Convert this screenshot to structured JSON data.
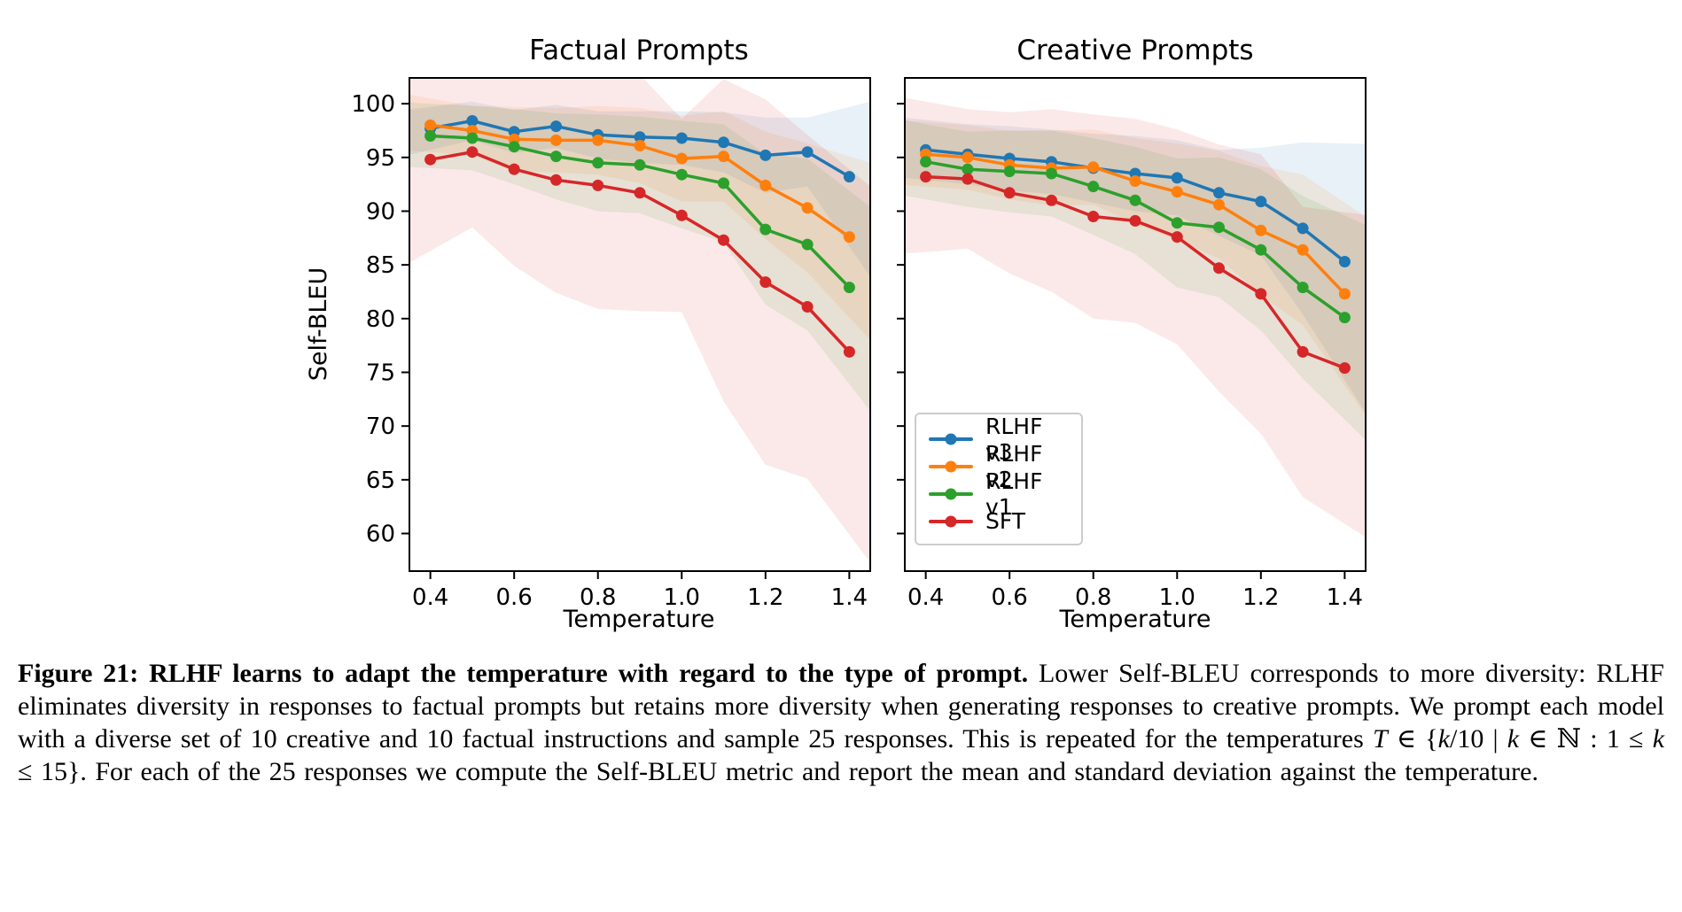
{
  "figure_label": "Figure 21",
  "legend": {
    "position": "lower-left-of-right-plot",
    "items": [
      {
        "label": "RLHF v3",
        "color": "#1f77b4"
      },
      {
        "label": "RLHF v2",
        "color": "#ff7f0e"
      },
      {
        "label": "RLHF v1",
        "color": "#2ca02c"
      },
      {
        "label": "SFT",
        "color": "#d62728"
      }
    ]
  },
  "caption": {
    "segments": [
      {
        "text": "Figure 21: RLHF learns to adapt the temperature with regard to the type of prompt.",
        "bold": true
      },
      {
        "text": " Lower Self-BLEU corresponds to more diversity: RLHF eliminates diversity in responses to factual prompts but retains more diversity when generating responses to creative prompts. We prompt each model with a diverse set of 10 creative and 10 factual instructions and sample 25 responses. This is repeated for the temperatures "
      },
      {
        "text": "T",
        "italic": true
      },
      {
        "text": " ∈ {"
      },
      {
        "text": "k",
        "italic": true
      },
      {
        "text": "/10 | "
      },
      {
        "text": "k",
        "italic": true
      },
      {
        "text": " ∈ ℕ : 1 ≤ "
      },
      {
        "text": "k",
        "italic": true
      },
      {
        "text": " ≤ 15}. For each of the 25 responses we compute the Self-BLEU metric and report the mean and standard deviation against the temperature."
      }
    ]
  },
  "chart_data": [
    {
      "type": "line",
      "title": "Factual Prompts",
      "xlabel": "Temperature",
      "ylabel": "Self-BLEU",
      "grid": false,
      "band": "mean ± standard deviation, translucent",
      "xlim": [
        0.35,
        1.45
      ],
      "ylim": [
        56.5,
        102.4
      ],
      "xticks": [
        "0.4",
        "0.6",
        "0.8",
        "1.0",
        "1.2",
        "1.4"
      ],
      "xtick_values": [
        0.4,
        0.6,
        0.8,
        1.0,
        1.2,
        1.4
      ],
      "yticks": [
        "100",
        "95",
        "90",
        "85",
        "80",
        "75",
        "70",
        "65",
        "60"
      ],
      "ytick_values": [
        100,
        95,
        90,
        85,
        80,
        75,
        70,
        65,
        60
      ],
      "show_y_tick_labels": true,
      "x": [
        0.4,
        0.5,
        0.6,
        0.7,
        0.8,
        0.9,
        1.0,
        1.1,
        1.2,
        1.3,
        1.4
      ],
      "series": [
        {
          "name": "RLHF v3",
          "color": "#1f77b4",
          "values": [
            97.7,
            98.4,
            97.4,
            97.9,
            97.1,
            96.9,
            96.8,
            96.4,
            95.2,
            95.5,
            93.2
          ],
          "std": [
            2.0,
            1.8,
            2.0,
            2.0,
            2.2,
            2.4,
            2.5,
            2.8,
            3.5,
            3.2,
            6.5
          ]
        },
        {
          "name": "RLHF v2",
          "color": "#ff7f0e",
          "values": [
            98.0,
            97.5,
            96.7,
            96.6,
            96.6,
            96.1,
            94.9,
            95.1,
            92.4,
            90.3,
            87.6
          ],
          "std": [
            2.5,
            2.3,
            3.0,
            3.0,
            3.2,
            3.5,
            4.0,
            4.2,
            5.0,
            6.0,
            7.5
          ]
        },
        {
          "name": "RLHF v1",
          "color": "#2ca02c",
          "values": [
            97.0,
            96.8,
            96.0,
            95.1,
            94.5,
            94.3,
            93.4,
            92.6,
            88.3,
            86.9,
            82.9
          ],
          "std": [
            3.0,
            3.0,
            3.5,
            4.0,
            4.5,
            4.5,
            5.0,
            5.5,
            7.0,
            8.0,
            9.0
          ]
        },
        {
          "name": "SFT",
          "color": "#d62728",
          "values": [
            94.8,
            95.5,
            93.9,
            92.9,
            92.4,
            91.7,
            89.6,
            87.3,
            83.4,
            81.1,
            76.9
          ],
          "std": [
            8.5,
            7.0,
            9.0,
            10.5,
            11.5,
            11.0,
            9.0,
            15.0,
            17.0,
            16.0,
            17.0
          ]
        }
      ]
    },
    {
      "type": "line",
      "title": "Creative Prompts",
      "xlabel": "Temperature",
      "ylabel": null,
      "grid": false,
      "band": "mean ± standard deviation, translucent",
      "xlim": [
        0.35,
        1.45
      ],
      "ylim": [
        56.5,
        102.4
      ],
      "xticks": [
        "0.4",
        "0.6",
        "0.8",
        "1.0",
        "1.2",
        "1.4"
      ],
      "xtick_values": [
        0.4,
        0.6,
        0.8,
        1.0,
        1.2,
        1.4
      ],
      "yticks": [
        "100",
        "95",
        "90",
        "85",
        "80",
        "75",
        "70",
        "65",
        "60"
      ],
      "ytick_values": [
        100,
        95,
        90,
        85,
        80,
        75,
        70,
        65,
        60
      ],
      "show_y_tick_labels": false,
      "x": [
        0.4,
        0.5,
        0.6,
        0.7,
        0.8,
        0.9,
        1.0,
        1.1,
        1.2,
        1.3,
        1.4
      ],
      "series": [
        {
          "name": "RLHF v3",
          "color": "#1f77b4",
          "values": [
            95.7,
            95.3,
            94.9,
            94.6,
            94.0,
            93.5,
            93.1,
            91.7,
            90.9,
            88.4,
            85.3
          ],
          "std": [
            2.8,
            2.8,
            3.0,
            3.0,
            3.2,
            3.5,
            3.5,
            4.0,
            5.0,
            8.0,
            11.0
          ]
        },
        {
          "name": "RLHF v2",
          "color": "#ff7f0e",
          "values": [
            95.3,
            95.0,
            94.3,
            94.0,
            94.1,
            92.8,
            91.8,
            90.6,
            88.2,
            86.4,
            82.3
          ],
          "std": [
            3.0,
            3.0,
            3.2,
            3.5,
            3.5,
            4.0,
            4.5,
            5.0,
            6.0,
            7.0,
            8.5
          ]
        },
        {
          "name": "RLHF v1",
          "color": "#2ca02c",
          "values": [
            94.6,
            93.9,
            93.7,
            93.5,
            92.3,
            91.0,
            88.9,
            88.5,
            86.4,
            82.9,
            80.1
          ],
          "std": [
            3.5,
            3.5,
            3.8,
            4.0,
            4.5,
            5.0,
            6.0,
            6.5,
            7.5,
            8.5,
            9.5
          ]
        },
        {
          "name": "SFT",
          "color": "#d62728",
          "values": [
            93.2,
            93.0,
            91.7,
            91.0,
            89.5,
            89.1,
            87.6,
            84.7,
            82.3,
            76.9,
            75.4
          ],
          "std": [
            7.0,
            6.5,
            7.5,
            8.5,
            9.5,
            9.5,
            10.0,
            11.5,
            13.0,
            13.5,
            14.5
          ]
        }
      ]
    }
  ]
}
